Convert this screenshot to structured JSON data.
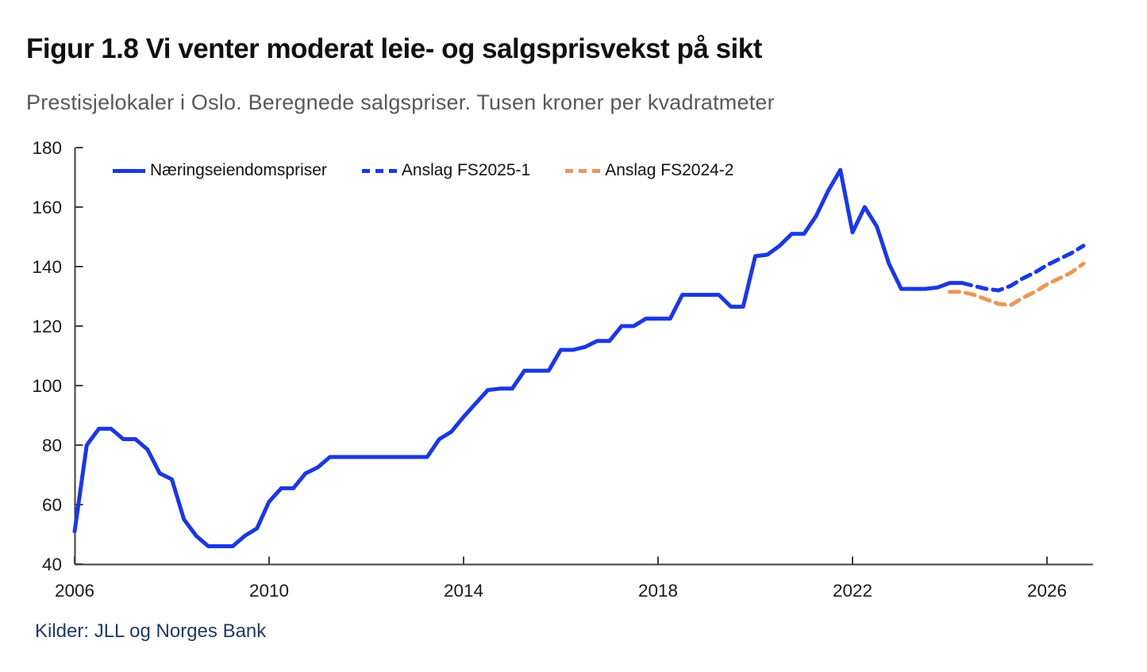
{
  "page": {
    "title": "Figur 1.8 Vi venter moderat leie- og salgsprisvekst på sikt",
    "subtitle": "Prestisjelokaler i Oslo. Beregnede salgspriser. Tusen kroner per kvadratmeter",
    "source": "Kilder: JLL og Norges Bank"
  },
  "colors": {
    "line_blue": "#1b38e2",
    "line_orange": "#e9985a",
    "axis": "#3f3f3f",
    "tick_label": "#1a1a1a",
    "title_text": "#101010",
    "subtitle_text": "#57585c",
    "source_text": "#1e3a5f"
  },
  "chart_data": {
    "type": "line",
    "title": "Figur 1.8 Vi venter moderat leie- og salgsprisvekst på sikt",
    "subtitle": "Prestisjelokaler i Oslo. Beregnede salgspriser. Tusen kroner per kvadratmeter",
    "xlabel": "",
    "ylabel": "",
    "xlim": [
      2006,
      2027.1
    ],
    "ylim": [
      40,
      180
    ],
    "yticks": [
      40,
      60,
      80,
      100,
      120,
      140,
      160,
      180
    ],
    "xticks": [
      2006,
      2010,
      2014,
      2018,
      2022,
      2026
    ],
    "grid": false,
    "legend_position": "top-left-inside",
    "x_unit": "year-quarterly",
    "series": [
      {
        "name": "Næringseiendomspriser",
        "style": "solid",
        "color": "#1b38e2",
        "x_start": 2006.0,
        "x_step": 0.25,
        "values": [
          51,
          80,
          85.5,
          85.5,
          82,
          82,
          78.5,
          70.5,
          68.5,
          55,
          49.5,
          46,
          46,
          46,
          49.5,
          52,
          61,
          65.5,
          65.5,
          70.5,
          72.5,
          76,
          76,
          76,
          76,
          76,
          76,
          76,
          76,
          76,
          82,
          84.5,
          89.5,
          94,
          98.5,
          99,
          99,
          105,
          105,
          105,
          112,
          112,
          113,
          115,
          115,
          120,
          120,
          122.5,
          122.5,
          122.5,
          130.5,
          130.5,
          130.5,
          130.5,
          126.5,
          126.5,
          143.5,
          144,
          147,
          151,
          151,
          157,
          165.5,
          172.5,
          151.5,
          160,
          153.5,
          141,
          132.5,
          132.5,
          132.5,
          133,
          134.5,
          134.5
        ]
      },
      {
        "name": "Anslag FS2025-1",
        "style": "dashed",
        "color": "#1b38e2",
        "x_start": 2024.25,
        "x_step": 0.25,
        "values": [
          134.5,
          133.5,
          132.5,
          132,
          133.5,
          136,
          138,
          140.5,
          142.5,
          144.5,
          147
        ]
      },
      {
        "name": "Anslag FS2024-2",
        "style": "dashed",
        "color": "#e9985a",
        "x_start": 2024.0,
        "x_step": 0.25,
        "values": [
          131.5,
          131.5,
          130.5,
          129,
          127.5,
          127,
          129.5,
          131.5,
          134,
          136,
          138,
          141
        ]
      }
    ]
  }
}
